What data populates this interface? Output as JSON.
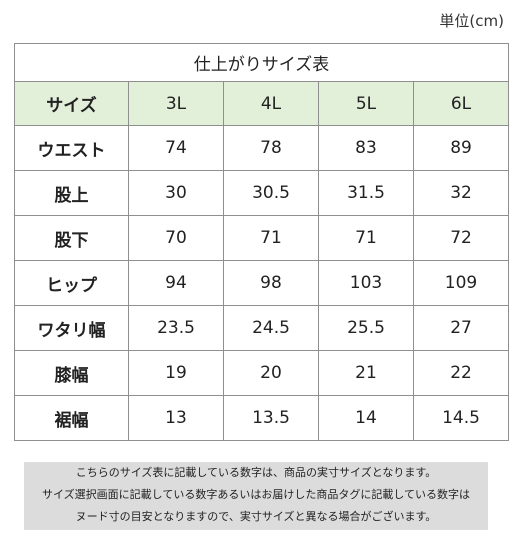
{
  "unit_label": "単位(cm)",
  "table": {
    "title": "仕上がりサイズ表",
    "header": [
      "サイズ",
      "3L",
      "4L",
      "5L",
      "6L"
    ],
    "rows": [
      {
        "label": "ウエスト",
        "values": [
          "74",
          "78",
          "83",
          "89"
        ]
      },
      {
        "label": "股上",
        "values": [
          "30",
          "30.5",
          "31.5",
          "32"
        ]
      },
      {
        "label": "股下",
        "values": [
          "70",
          "71",
          "71",
          "72"
        ]
      },
      {
        "label": "ヒップ",
        "values": [
          "94",
          "98",
          "103",
          "109"
        ]
      },
      {
        "label": "ワタリ幅",
        "values": [
          "23.5",
          "24.5",
          "25.5",
          "27"
        ]
      },
      {
        "label": "膝幅",
        "values": [
          "19",
          "20",
          "21",
          "22"
        ]
      },
      {
        "label": "裾幅",
        "values": [
          "13",
          "13.5",
          "14",
          "14.5"
        ]
      }
    ]
  },
  "note": {
    "lines": [
      "こちらのサイズ表に記載している数字は、商品の実寸サイズとなります。",
      "サイズ選択画面に記載している数字あるいはお届けした商品タグに記載している数字は",
      "ヌード寸の目安となりますので、実寸サイズと異なる場合がございます。"
    ]
  },
  "colors": {
    "header_bg": "#e2efd9",
    "note_bg": "#dcdcdc",
    "border": "#8f8f8f"
  }
}
